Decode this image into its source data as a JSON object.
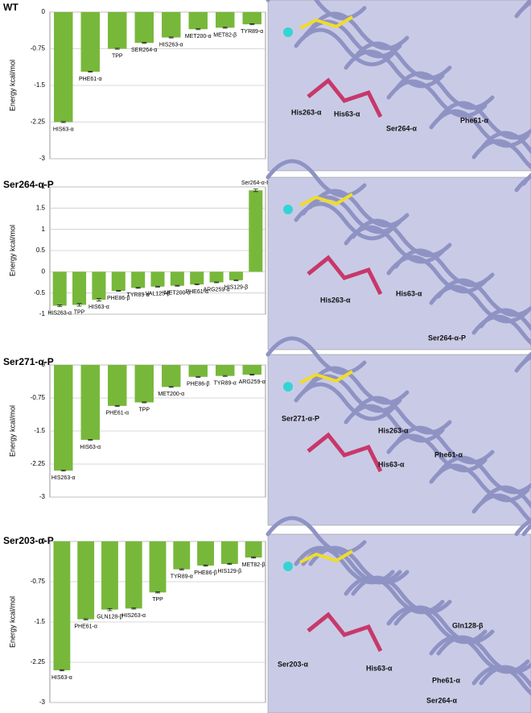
{
  "chart_data": [
    {
      "type": "bar",
      "title": "WT",
      "y_label": "Energy kcal/mol",
      "color": "#77b83a",
      "grid": true,
      "categories": [
        "HIS63-α",
        "PHE61-α",
        "TPP",
        "SER264-α",
        "HIS263-α",
        "MET200-α",
        "MET82-β",
        "TYR89-α"
      ],
      "values": [
        -2.25,
        -1.22,
        -0.75,
        -0.63,
        -0.52,
        -0.35,
        -0.32,
        -0.25
      ],
      "errors": [
        0.01,
        0.01,
        0.01,
        0.01,
        0.01,
        0.01,
        0.01,
        0.01
      ],
      "ylim": [
        -3,
        0
      ],
      "yticks": [
        0,
        -0.75,
        -1.5,
        -2.25,
        -3
      ]
    },
    {
      "type": "bar",
      "title": "Ser264-α-P",
      "y_label": "Energy kcal/mol",
      "color": "#77b83a",
      "grid": true,
      "categories": [
        "HIS263-α",
        "TPP",
        "HIS63-α",
        "PHE86-β",
        "TYR89-α",
        "VAL125-β",
        "MET200-α",
        "PHE61-α",
        "ARG259-α",
        "HIS129-β",
        "Ser264-α-P"
      ],
      "values": [
        -0.8,
        -0.78,
        -0.66,
        -0.45,
        -0.38,
        -0.35,
        -0.33,
        -0.3,
        -0.25,
        -0.2,
        1.92
      ],
      "errors": [
        0.02,
        0.03,
        0.03,
        0.01,
        0.01,
        0.01,
        0.01,
        0.01,
        0.01,
        0.01,
        0.03
      ],
      "ylim": [
        -1,
        2
      ],
      "yticks": [
        2,
        1.5,
        1,
        0.5,
        0,
        -0.5,
        -1
      ]
    },
    {
      "type": "bar",
      "title": "Ser271-α-P",
      "y_label": "Energy kcal/mol",
      "color": "#77b83a",
      "grid": true,
      "categories": [
        "HIS263-α",
        "HIS63-α",
        "PHE61-α",
        "TPP",
        "MET200-α",
        "PHE86-β",
        "TYR89-α",
        "ARG259-α"
      ],
      "values": [
        -2.4,
        -1.7,
        -0.93,
        -0.85,
        -0.5,
        -0.27,
        -0.25,
        -0.22
      ],
      "errors": [
        0.01,
        0.01,
        0.01,
        0.01,
        0.01,
        0.01,
        0.01,
        0.01
      ],
      "ylim": [
        -3,
        0
      ],
      "yticks": [
        0,
        -0.75,
        -1.5,
        -2.25,
        -3
      ]
    },
    {
      "type": "bar",
      "title": "Ser203-α-P",
      "y_label": "Energy kcal/mol",
      "color": "#77b83a",
      "grid": true,
      "categories": [
        "HIS63-α",
        "PHE61-α",
        "GLN128-β",
        "HIS263-α",
        "TPP",
        "TYR89-α",
        "PHE86-β",
        "HIS129-β",
        "MET82-β"
      ],
      "values": [
        -2.4,
        -1.45,
        -1.27,
        -1.25,
        -0.95,
        -0.52,
        -0.45,
        -0.42,
        -0.3
      ],
      "errors": [
        0.01,
        0.01,
        0.02,
        0.01,
        0.01,
        0.01,
        0.01,
        0.01,
        0.01
      ],
      "ylim": [
        -3,
        0
      ],
      "yticks": [
        0,
        -0.75,
        -1.5,
        -2.25,
        -3
      ]
    }
  ],
  "structure_panels": [
    {
      "labels": [
        "His263-α",
        "His63-α",
        "Ser264-α",
        "Phe61-α"
      ]
    },
    {
      "labels": [
        "His263-α",
        "His63-α",
        "Ser264-α-P"
      ]
    },
    {
      "labels": [
        "Ser271-α-P",
        "His263-α",
        "Phe61-α",
        "His63-α"
      ]
    },
    {
      "labels": [
        "Gln128-β",
        "Ser203-α",
        "His63-α",
        "Phe61-α",
        "Ser264-α"
      ]
    }
  ]
}
